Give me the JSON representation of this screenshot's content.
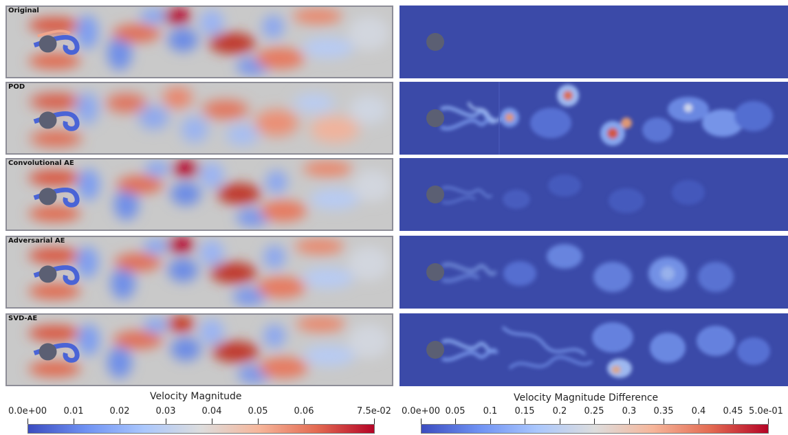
{
  "left_rows": [
    {
      "label": "Original"
    },
    {
      "label": "POD"
    },
    {
      "label": "Convolutional AE"
    },
    {
      "label": "Adversarial AE"
    },
    {
      "label": "SVD-AE"
    }
  ],
  "colorbar_left": {
    "title": "Velocity Magnitude",
    "ticks": [
      "0.0e+00",
      "0.01",
      "0.02",
      "0.03",
      "0.04",
      "0.05",
      "0.06",
      "7.5e-02"
    ],
    "colormap": [
      "#3b4cc0",
      "#6f92f3",
      "#aac7fd",
      "#dddddd",
      "#f6b69b",
      "#e36b52",
      "#b40426"
    ]
  },
  "colorbar_right": {
    "title": "Velocity Magnitude Difference",
    "ticks": [
      "0.0e+00",
      "0.05",
      "0.1",
      "0.15",
      "0.2",
      "0.25",
      "0.3",
      "0.35",
      "0.4",
      "0.45",
      "5.0e-01"
    ],
    "colormap": [
      "#3b4cc0",
      "#6f92f3",
      "#aac7fd",
      "#dddddd",
      "#f6b69b",
      "#e36b52",
      "#b40426"
    ]
  }
}
